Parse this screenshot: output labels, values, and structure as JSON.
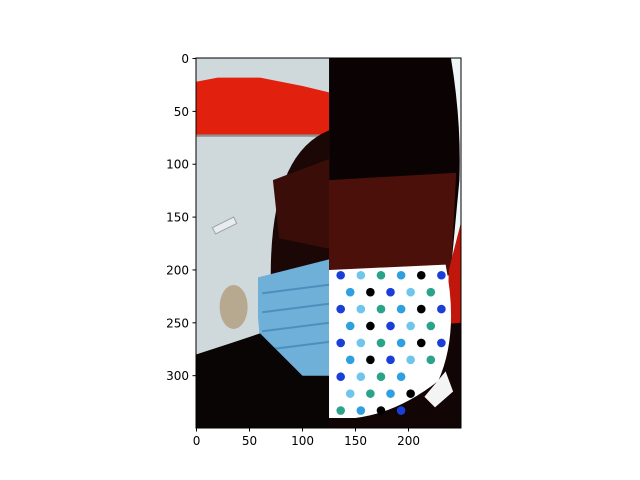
{
  "chart_data": {
    "type": "image",
    "title": "",
    "xlabel": "",
    "ylabel": "",
    "xlim": [
      -0.5,
      249.5
    ],
    "ylim": [
      349.5,
      -0.5
    ],
    "x_ticks": [
      0,
      50,
      100,
      150,
      200
    ],
    "y_ticks": [
      0,
      50,
      100,
      150,
      200,
      250,
      300
    ],
    "grid": false,
    "split_x": 125,
    "left_half": {
      "colors": {
        "background": "#cfd9dc",
        "red_band": "#e1210d",
        "hair": "#1a0706",
        "skin_dark": "#3a0d08",
        "mask": "#6fb0d8",
        "mask_shade": "#4b8fbd",
        "shirt": "#0a0505"
      }
    },
    "right_half": {
      "colors": {
        "background": "#eef6f8",
        "hair": "#0b0303",
        "skin": "#4a1009",
        "mask": "#ffffff",
        "shirt": "#120506",
        "red_edge": "#c0160b"
      },
      "dot_colors": [
        "#1a3fd8",
        "#2ba38a",
        "#000000",
        "#6fc6ea",
        "#2ea0e0"
      ]
    }
  }
}
